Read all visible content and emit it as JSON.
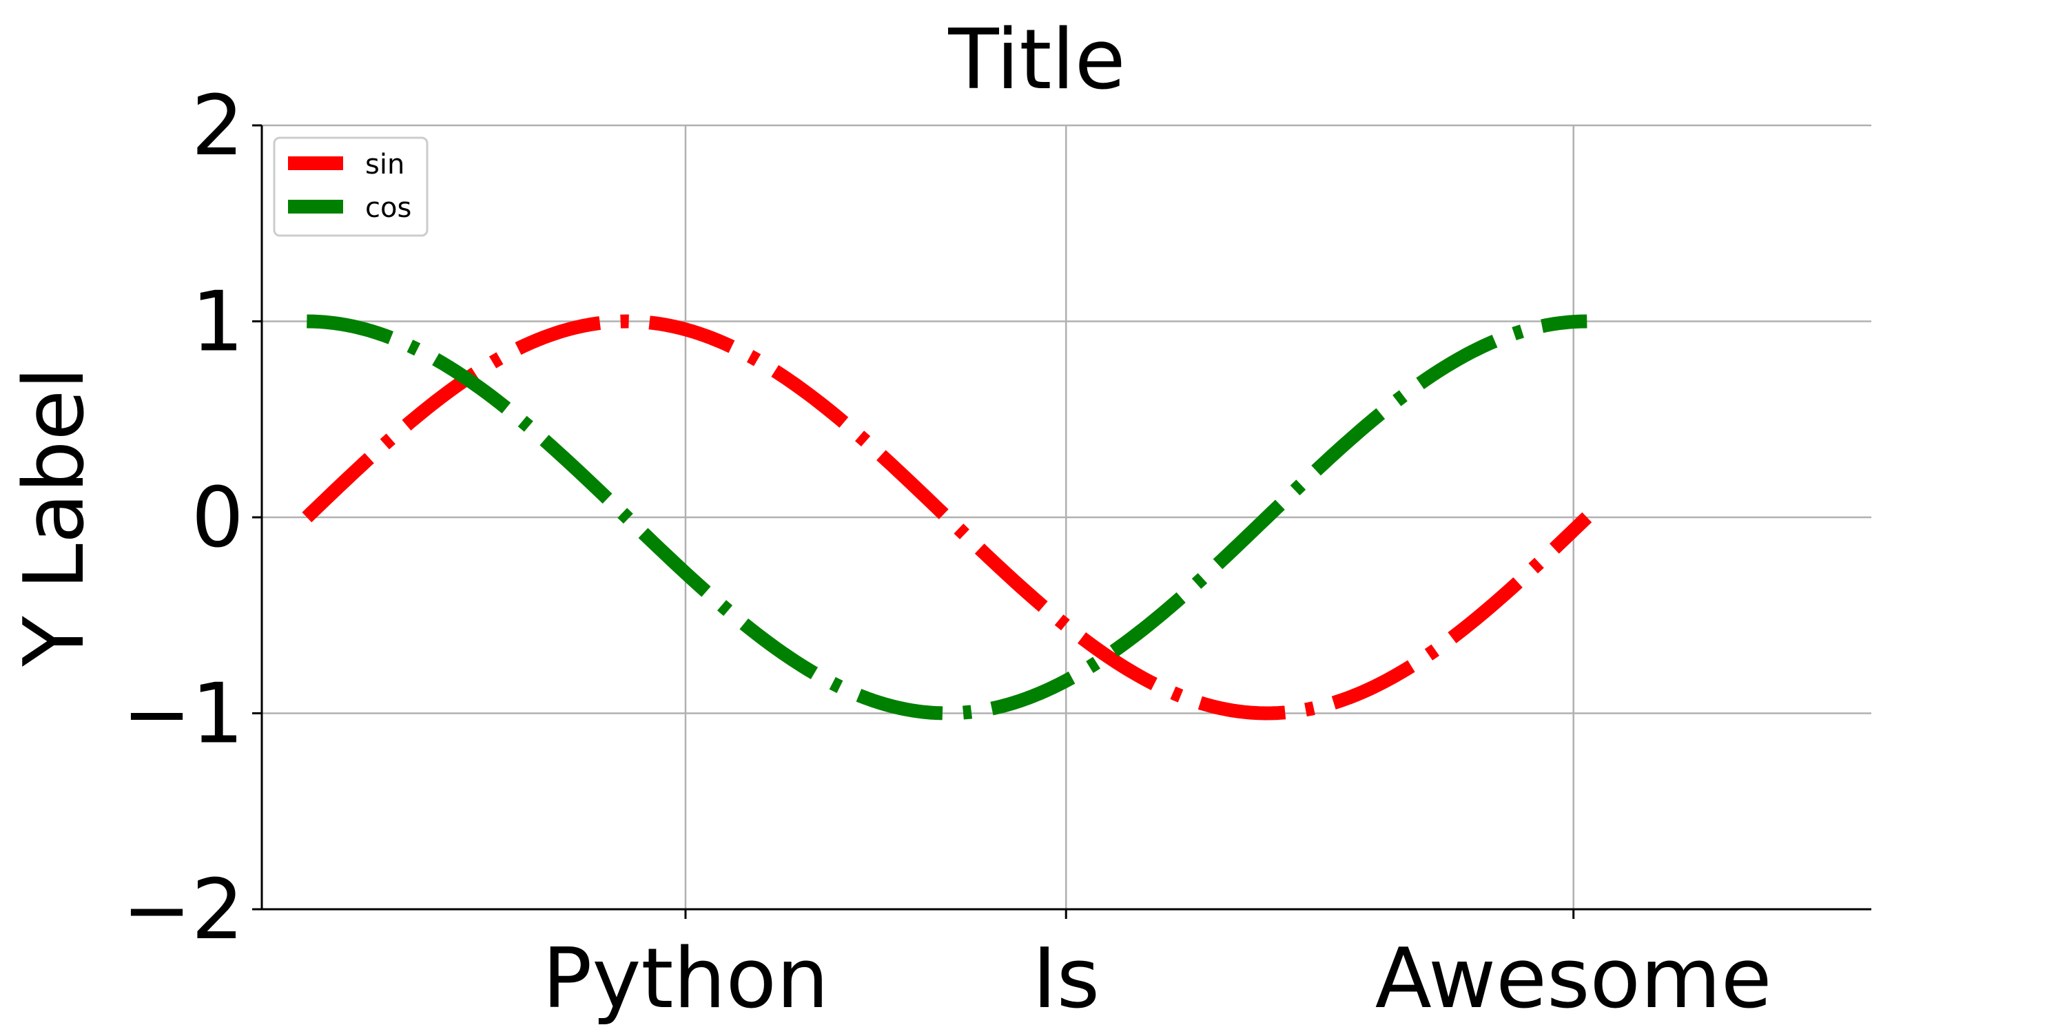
{
  "chart_data": {
    "type": "line",
    "title": "Title",
    "xlabel": "",
    "ylabel": "Y Label",
    "xlim": [
      -0.2209,
      7.6789
    ],
    "ylim": [
      -2,
      2
    ],
    "xticks": [
      {
        "value": 1.8587,
        "label": "Python"
      },
      {
        "value": 3.7264,
        "label": "Is"
      },
      {
        "value": 6.217,
        "label": "Awesome"
      }
    ],
    "yticks": [
      {
        "value": -2,
        "label": "−2"
      },
      {
        "value": -1,
        "label": "−1"
      },
      {
        "value": 0,
        "label": "0"
      },
      {
        "value": 1,
        "label": "1"
      },
      {
        "value": 2,
        "label": "2"
      }
    ],
    "grid": true,
    "legend": {
      "position": "top-left"
    },
    "series": [
      {
        "name": "sin",
        "function": "sin",
        "x_range": [
          0,
          6.2832
        ],
        "points": 200,
        "color": "#ff0000",
        "linestyle": "dash-dot"
      },
      {
        "name": "cos",
        "function": "cos",
        "x_range": [
          0,
          6.2832
        ],
        "points": 200,
        "color": "#008000",
        "linestyle": "dash-dot"
      }
    ]
  }
}
